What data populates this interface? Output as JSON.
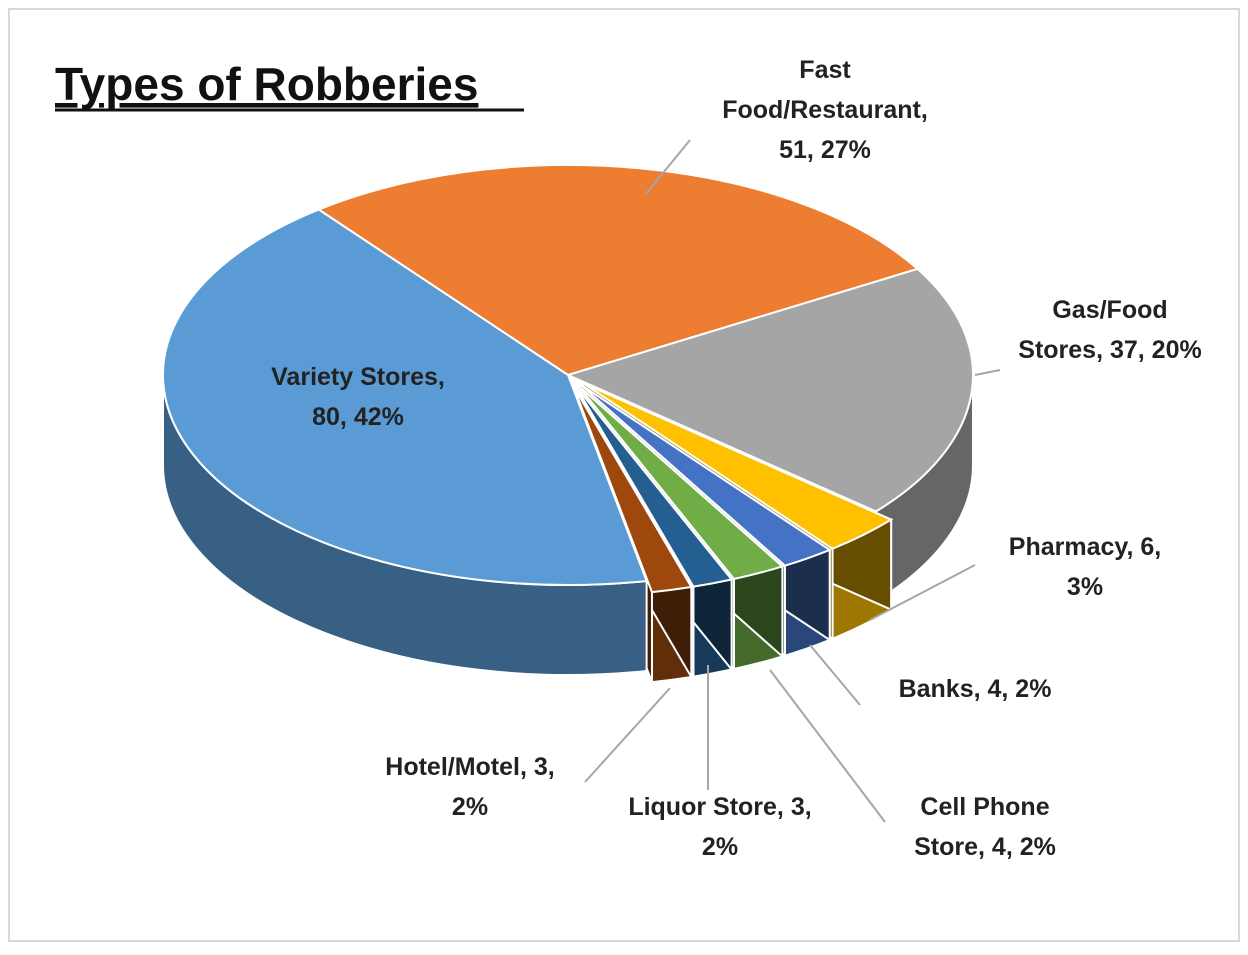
{
  "chart_data": {
    "type": "pie3d",
    "title": "Types of Robberies",
    "categories": [
      "Fast Food/Restaurant",
      "Gas/Food Stores",
      "Pharmacy",
      "Banks",
      "Cell Phone Store",
      "Liquor Store",
      "Hotel/Motel",
      "Variety Stores"
    ],
    "values": [
      51,
      37,
      6,
      4,
      4,
      3,
      3,
      80
    ],
    "value_labels": [
      "Fast Food/Restaurant, 51, 27%",
      "Gas/Food Stores, 37, 20%",
      "Pharmacy, 6, 3%",
      "Banks, 4, 2%",
      "Cell Phone Store, 4, 2%",
      "Liquor Store, 3, 2%",
      "Hotel/Motel, 3, 2%",
      "Variety Stores, 80, 42%"
    ],
    "colors": [
      "#ed7d31",
      "#a5a5a5",
      "#ffc000",
      "#4472c4",
      "#70ad47",
      "#255e91",
      "#9e480e",
      "#5b9bd5"
    ]
  }
}
